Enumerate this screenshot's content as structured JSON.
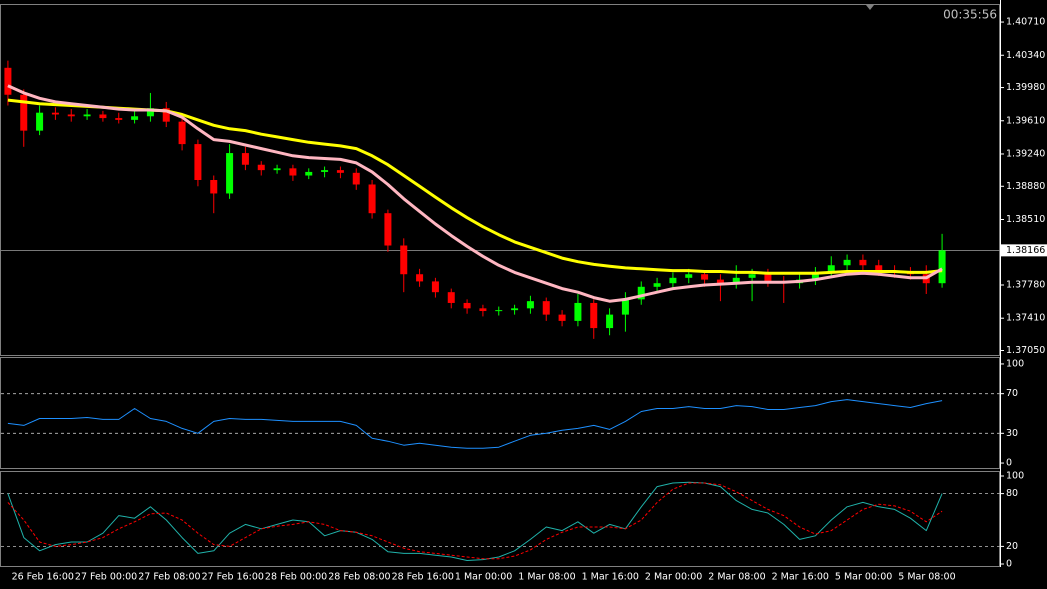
{
  "chart_data": [
    {
      "type": "candlestick",
      "timer": "00:35:56",
      "current_price": 1.38166,
      "ylim": [
        1.37,
        1.409
      ],
      "yticks": [
        {
          "value": 1.4071,
          "label": "1.40710"
        },
        {
          "value": 1.4034,
          "label": "1.40340"
        },
        {
          "value": 1.3998,
          "label": "1.39980"
        },
        {
          "value": 1.3961,
          "label": "1.39610"
        },
        {
          "value": 1.3924,
          "label": "1.39240"
        },
        {
          "value": 1.3888,
          "label": "1.38880"
        },
        {
          "value": 1.3851,
          "label": "1.38510"
        },
        {
          "value": 1.3778,
          "label": "1.37780"
        },
        {
          "value": 1.3741,
          "label": "1.37410"
        },
        {
          "value": 1.3705,
          "label": "1.37050"
        }
      ],
      "up_color": "#00ff00",
      "down_color": "#ff0000",
      "open": [
        1.402,
        1.399,
        1.395,
        1.397,
        1.3968,
        1.3966,
        1.3968,
        1.3964,
        1.3962,
        1.3966,
        1.3975,
        1.396,
        1.3935,
        1.3895,
        1.388,
        1.3925,
        1.3912,
        1.3906,
        1.3908,
        1.39,
        1.3904,
        1.3906,
        1.3903,
        1.389,
        1.3858,
        1.3822,
        1.379,
        1.3782,
        1.377,
        1.3758,
        1.3752,
        1.3749,
        1.375,
        1.3752,
        1.376,
        1.3745,
        1.3738,
        1.3758,
        1.373,
        1.3745,
        1.3762,
        1.3776,
        1.378,
        1.3786,
        1.379,
        1.3784,
        1.378,
        1.3786,
        1.379,
        1.3782,
        1.378,
        1.3784,
        1.3792,
        1.38,
        1.3806,
        1.38,
        1.3794,
        1.3792,
        1.379,
        1.378
      ],
      "high": [
        1.4028,
        1.3996,
        1.3978,
        1.3976,
        1.3974,
        1.3974,
        1.3972,
        1.397,
        1.3972,
        1.3992,
        1.3982,
        1.3966,
        1.394,
        1.39,
        1.3935,
        1.3932,
        1.3916,
        1.3912,
        1.3912,
        1.3908,
        1.391,
        1.391,
        1.3908,
        1.3895,
        1.3862,
        1.383,
        1.3796,
        1.3786,
        1.3774,
        1.3762,
        1.3756,
        1.3754,
        1.3756,
        1.3766,
        1.3764,
        1.375,
        1.3768,
        1.3762,
        1.3752,
        1.377,
        1.3782,
        1.3786,
        1.3792,
        1.3796,
        1.3794,
        1.379,
        1.38,
        1.3796,
        1.3796,
        1.3788,
        1.379,
        1.3798,
        1.381,
        1.3812,
        1.3812,
        1.3806,
        1.38,
        1.3798,
        1.38,
        1.3835
      ],
      "low": [
        1.3978,
        1.3932,
        1.3945,
        1.3962,
        1.396,
        1.3962,
        1.396,
        1.3958,
        1.3958,
        1.396,
        1.3954,
        1.3928,
        1.3888,
        1.3858,
        1.3874,
        1.3906,
        1.39,
        1.3902,
        1.3894,
        1.3896,
        1.3898,
        1.3897,
        1.3884,
        1.3852,
        1.3815,
        1.377,
        1.3776,
        1.3764,
        1.3752,
        1.3746,
        1.3743,
        1.3744,
        1.3745,
        1.3746,
        1.3738,
        1.3732,
        1.3732,
        1.3718,
        1.3722,
        1.3726,
        1.3756,
        1.377,
        1.3774,
        1.378,
        1.3776,
        1.376,
        1.3774,
        1.376,
        1.3776,
        1.3758,
        1.3774,
        1.3778,
        1.3786,
        1.3794,
        1.3794,
        1.3788,
        1.3786,
        1.3784,
        1.3768,
        1.3775
      ],
      "close": [
        1.399,
        1.395,
        1.397,
        1.3968,
        1.3966,
        1.3968,
        1.3964,
        1.3962,
        1.3966,
        1.3975,
        1.396,
        1.3935,
        1.3895,
        1.388,
        1.3925,
        1.3912,
        1.3906,
        1.3908,
        1.39,
        1.3904,
        1.3906,
        1.3903,
        1.389,
        1.3858,
        1.3822,
        1.379,
        1.3782,
        1.377,
        1.3758,
        1.3752,
        1.3749,
        1.375,
        1.3752,
        1.376,
        1.3745,
        1.3738,
        1.3758,
        1.373,
        1.3745,
        1.3762,
        1.3776,
        1.378,
        1.3786,
        1.379,
        1.3784,
        1.378,
        1.3786,
        1.379,
        1.3782,
        1.378,
        1.3784,
        1.3792,
        1.38,
        1.3806,
        1.38,
        1.3794,
        1.3792,
        1.379,
        1.378,
        1.38166
      ],
      "series": [
        {
          "color": "#ffff00",
          "values": [
            1.3984,
            1.3982,
            1.398,
            1.3979,
            1.3978,
            1.3977,
            1.3976,
            1.3975,
            1.3974,
            1.3973,
            1.3972,
            1.3968,
            1.3962,
            1.3956,
            1.3952,
            1.395,
            1.3946,
            1.3943,
            1.394,
            1.3937,
            1.3935,
            1.3933,
            1.393,
            1.3922,
            1.3912,
            1.39,
            1.3888,
            1.3876,
            1.3864,
            1.3853,
            1.3843,
            1.3834,
            1.3826,
            1.382,
            1.3814,
            1.3808,
            1.3804,
            1.3801,
            1.3799,
            1.3797,
            1.3796,
            1.3795,
            1.3794,
            1.3794,
            1.3793,
            1.3793,
            1.3792,
            1.3792,
            1.3791,
            1.3791,
            1.3791,
            1.3791,
            1.3792,
            1.3793,
            1.3793,
            1.3793,
            1.3793,
            1.3792,
            1.3792,
            1.3794
          ]
        },
        {
          "color": "#ffb6c1",
          "values": [
            1.4,
            1.3992,
            1.3986,
            1.3982,
            1.398,
            1.3978,
            1.3976,
            1.3974,
            1.3973,
            1.3973,
            1.3972,
            1.3965,
            1.3952,
            1.394,
            1.3938,
            1.3934,
            1.393,
            1.3926,
            1.3922,
            1.392,
            1.3919,
            1.3918,
            1.3914,
            1.3904,
            1.389,
            1.3874,
            1.386,
            1.3846,
            1.3833,
            1.3821,
            1.381,
            1.38,
            1.3792,
            1.3786,
            1.378,
            1.3774,
            1.377,
            1.3764,
            1.376,
            1.3762,
            1.3766,
            1.377,
            1.3774,
            1.3776,
            1.3778,
            1.3779,
            1.378,
            1.3781,
            1.3781,
            1.3781,
            1.3782,
            1.3784,
            1.3787,
            1.379,
            1.3791,
            1.379,
            1.3788,
            1.3786,
            1.3786,
            1.3796
          ]
        }
      ]
    },
    {
      "type": "line",
      "ylim": [
        -5,
        106
      ],
      "yticks": [
        100,
        70,
        30,
        0
      ],
      "levels": [
        70,
        30
      ],
      "series": [
        {
          "color": "#1e90ff",
          "values": [
            40,
            38,
            45,
            45,
            45,
            46,
            44,
            44,
            55,
            45,
            42,
            35,
            30,
            42,
            45,
            44,
            44,
            43,
            42,
            42,
            42,
            42,
            38,
            25,
            22,
            18,
            20,
            18,
            16,
            15,
            15,
            16,
            22,
            28,
            30,
            33,
            35,
            38,
            34,
            42,
            52,
            55,
            55,
            57,
            55,
            55,
            58,
            57,
            54,
            54,
            56,
            58,
            62,
            64,
            62,
            60,
            58,
            56,
            60,
            63
          ]
        }
      ]
    },
    {
      "type": "line",
      "ylim": [
        0,
        100
      ],
      "yticks": [
        100,
        80,
        20,
        0
      ],
      "levels": [
        80,
        20
      ],
      "categories": [
        null,
        null,
        "26 Feb 16:00",
        null,
        null,
        null,
        "27 Feb 00:00",
        null,
        null,
        null,
        "27 Feb 08:00",
        null,
        null,
        null,
        "27 Feb 16:00",
        null,
        null,
        null,
        "28 Feb 00:00",
        null,
        null,
        null,
        "28 Feb 08:00",
        null,
        null,
        null,
        "28 Feb 16:00",
        null,
        null,
        null,
        "1 Mar 00:00",
        null,
        null,
        null,
        "1 Mar 08:00",
        null,
        null,
        null,
        "1 Mar 16:00",
        null,
        null,
        null,
        "2 Mar 00:00",
        null,
        null,
        null,
        "2 Mar 08:00",
        null,
        null,
        null,
        "2 Mar 16:00",
        null,
        null,
        null,
        "5 Mar 00:00",
        null,
        null,
        null,
        "5 Mar 08:00",
        null
      ],
      "series": [
        {
          "color": "#20b2aa",
          "values": [
            80,
            30,
            15,
            22,
            25,
            25,
            35,
            55,
            52,
            65,
            50,
            30,
            12,
            15,
            35,
            45,
            40,
            45,
            50,
            48,
            32,
            38,
            36,
            28,
            14,
            12,
            12,
            10,
            8,
            4,
            5,
            8,
            15,
            28,
            42,
            38,
            48,
            35,
            45,
            40,
            65,
            88,
            92,
            93,
            92,
            88,
            72,
            62,
            58,
            45,
            28,
            32,
            50,
            65,
            70,
            65,
            62,
            52,
            38,
            80
          ]
        },
        {
          "color": "#ff0000",
          "dashed": true,
          "values": [
            70,
            50,
            25,
            20,
            22,
            25,
            30,
            40,
            48,
            57,
            58,
            50,
            35,
            22,
            20,
            30,
            40,
            43,
            45,
            48,
            45,
            38,
            36,
            32,
            25,
            18,
            14,
            12,
            10,
            8,
            6,
            6,
            9,
            16,
            28,
            36,
            42,
            42,
            42,
            40,
            50,
            70,
            85,
            92,
            92,
            90,
            82,
            72,
            62,
            55,
            42,
            34,
            38,
            50,
            62,
            68,
            66,
            60,
            48,
            60
          ]
        }
      ]
    }
  ]
}
